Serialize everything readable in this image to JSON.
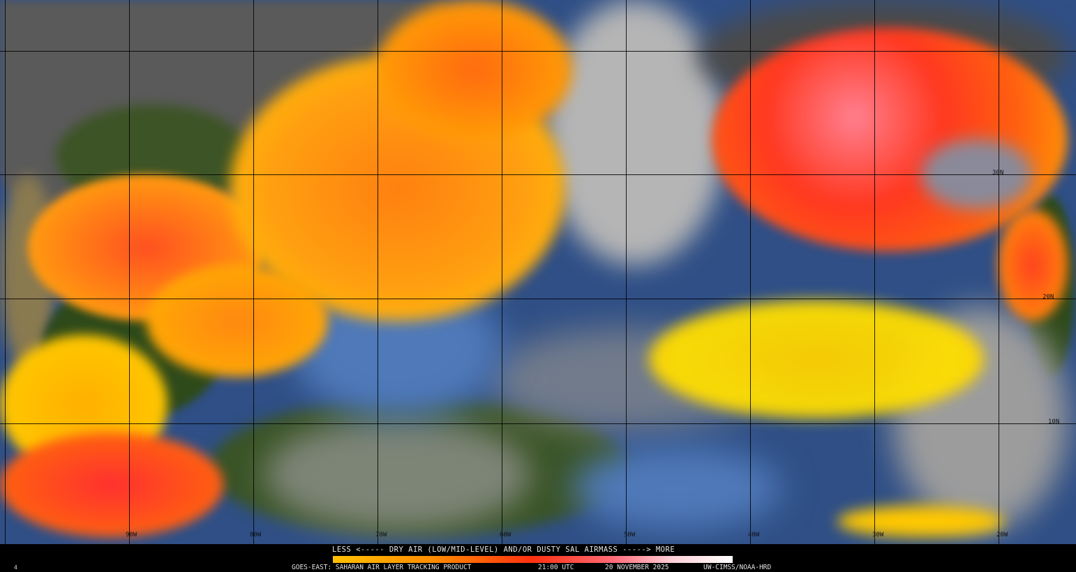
{
  "product": {
    "legend_title": "LESS <----- DRY AIR (LOW/MID-LEVEL) AND/OR DUSTY SAL AIRMASS -----> MORE",
    "legend_colors": [
      "#ffc000",
      "#ff8c00",
      "#ff3010",
      "#ff6a78",
      "#ffd0d8",
      "#ffffff"
    ],
    "footer_product": "GOES-EAST: SAHARAN AIR LAYER TRACKING PRODUCT",
    "footer_time": "21:00 UTC",
    "footer_date": "20 NOVEMBER 2025",
    "footer_credit": "UW-CIMSS/NOAA-HRD",
    "frame_number": "4"
  },
  "grid": {
    "longitude_labels": [
      "90W",
      "80W",
      "70W",
      "60W",
      "50W",
      "40W",
      "30W",
      "20W"
    ],
    "latitude_labels": [
      "30N",
      "20N",
      "10N"
    ]
  },
  "colors": {
    "ocean": "#2f4f86",
    "land": "#2d4a1c",
    "clouds": "#b8b8b8",
    "sal_low": "#ffd000",
    "sal_mid": "#ff8000",
    "sal_high": "#ff3020"
  }
}
